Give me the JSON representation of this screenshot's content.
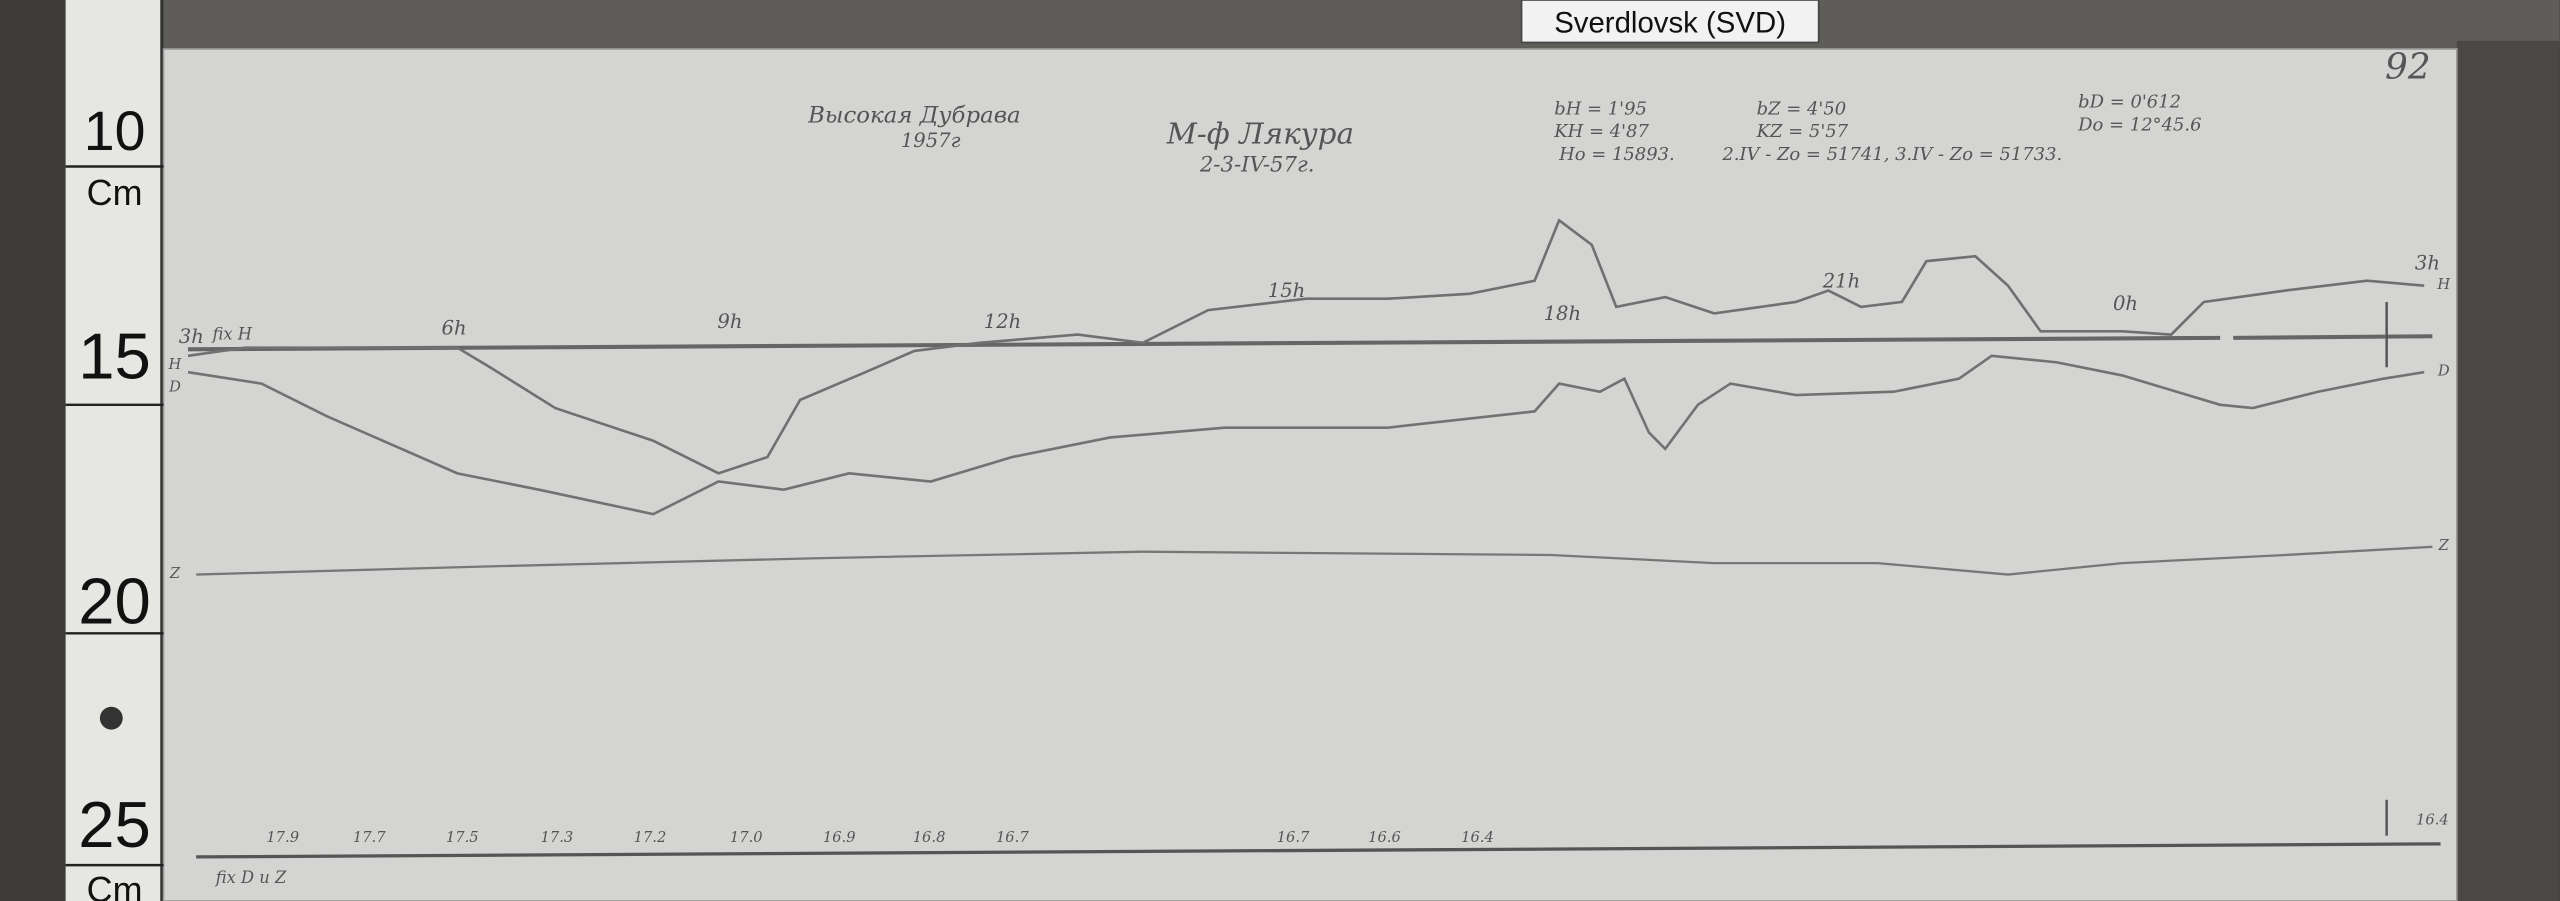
{
  "station_label": "Sverdlovsk (SVD)",
  "ruler": [
    "10",
    "Cm",
    "15",
    "20",
    "25",
    "Cm"
  ],
  "sheet": {
    "number": "92",
    "location": "Высокая Дубрава",
    "year": "1957г",
    "observer": "М-ф Лякура",
    "date": "2-3-IV-57г.",
    "constants": [
      "bH = 1'95",
      "KH = 4'87",
      "Ho = 15893.",
      "bZ = 4'50",
      "KZ = 5'57",
      "2.IV - Zo = 51741,  3.IV - Zo = 51733.",
      "bD = 0'612",
      "Do = 12°45.6"
    ],
    "baseline_label": "fix H",
    "hours": [
      "3h",
      "6h",
      "9h",
      "12h",
      "15h",
      "18h",
      "21h",
      "0h",
      "3h"
    ],
    "trace_labels_left": [
      "H",
      "D",
      "Z"
    ],
    "trace_labels_right": [
      "H",
      "D",
      "Z"
    ],
    "bottom_scale": [
      "17.9",
      "17.7",
      "17.5",
      "17.3",
      "17.2",
      "17.0",
      "16.9",
      "16.8",
      "16.7",
      "16.7",
      "16.6",
      "16.4",
      "16.4"
    ],
    "bottom_label": "fix D и Z"
  }
}
